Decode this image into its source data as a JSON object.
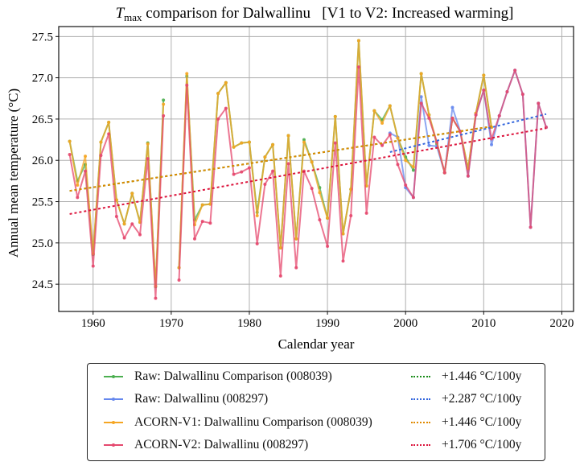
{
  "chart_data": {
    "type": "line",
    "title_main": "T",
    "title_sub": "max",
    "title_rest": " comparison for Dalwallinu   [V1 to V2: Increased warming]",
    "xlabel": "Calendar year",
    "ylabel": "Annual mean temperature (°C)",
    "xlim": [
      1955.6,
      2021.5
    ],
    "ylim": [
      24.17,
      27.62
    ],
    "xticks": [
      1960,
      1970,
      1980,
      1990,
      2000,
      2010,
      2020
    ],
    "yticks": [
      24.5,
      25.0,
      25.5,
      26.0,
      26.5,
      27.0,
      27.5
    ],
    "ytick_labels": [
      "24.5",
      "25.0",
      "25.5",
      "26.0",
      "26.5",
      "27.0",
      "27.5"
    ],
    "grid": true,
    "legend_placement": "below",
    "series": [
      {
        "name": "Raw: Dalwallinu Comparison (008039)",
        "color": "#4caf50",
        "years": [
          1957,
          1958,
          1959,
          1960,
          1961,
          1962,
          1963,
          1964,
          1965,
          1966,
          1967,
          1968,
          1969,
          null,
          1971,
          1972,
          1973,
          1974,
          1975,
          1976,
          1977,
          1978,
          1979,
          1980,
          1981,
          1982,
          1983,
          1984,
          1985,
          1986,
          1987,
          1988,
          1989,
          1990,
          1991,
          1992,
          1993,
          1994,
          1995,
          1996,
          1997,
          1998,
          1999,
          2000,
          2001,
          2002,
          2003,
          2004,
          2005,
          2006,
          2007,
          2008,
          2009,
          2010,
          2011
        ],
        "values": [
          26.23,
          25.75,
          25.95,
          24.86,
          26.22,
          26.46,
          25.52,
          25.23,
          25.6,
          25.25,
          26.21,
          24.47,
          26.73,
          null,
          24.7,
          27.02,
          25.28,
          25.46,
          25.47,
          26.81,
          26.94,
          26.16,
          26.21,
          26.22,
          25.37,
          26.04,
          26.19,
          24.94,
          26.3,
          25.05,
          26.25,
          25.98,
          25.67,
          25.3,
          26.53,
          25.11,
          25.65,
          27.45,
          25.69,
          26.6,
          26.49,
          26.66,
          26.27,
          26.04,
          25.88,
          27.05,
          26.55,
          26.2,
          25.85,
          26.51,
          26.35,
          25.9,
          26.57,
          27.03,
          26.4
        ]
      },
      {
        "name": "Raw: Dalwallinu (008297)",
        "color": "#6688ee",
        "years": [
          1998,
          1999,
          2000,
          2001,
          2002,
          2003,
          2004,
          2005,
          2006,
          2007,
          2008,
          2009,
          2010,
          2011,
          2012,
          2013,
          2014,
          2015,
          2016,
          2017,
          2018
        ],
        "values": [
          26.33,
          26.28,
          25.67,
          25.55,
          26.77,
          26.18,
          26.17,
          25.85,
          26.64,
          26.35,
          25.81,
          26.55,
          26.85,
          26.19,
          26.54,
          26.83,
          27.09,
          26.8,
          25.19,
          26.69,
          26.4
        ]
      },
      {
        "name": "ACORN-V1: Dalwallinu Comparison (008039)",
        "color": "#f5a623",
        "years": [
          1957,
          1958,
          1959,
          1960,
          1961,
          1962,
          1963,
          1964,
          1965,
          1966,
          1967,
          1968,
          1969,
          null,
          1971,
          1972,
          1973,
          1974,
          1975,
          1976,
          1977,
          1978,
          1979,
          1980,
          1981,
          1982,
          1983,
          1984,
          1985,
          1986,
          1987,
          1988,
          1989,
          1990,
          1991,
          1992,
          1993,
          1994,
          1995,
          1996,
          1997,
          1998,
          1999,
          2000,
          2001,
          2002,
          2003,
          2004,
          2005,
          2006,
          2007,
          2008,
          2009,
          2010,
          2011
        ],
        "values": [
          26.23,
          25.7,
          26.05,
          24.87,
          26.22,
          26.46,
          25.52,
          25.23,
          25.6,
          25.25,
          26.2,
          24.48,
          26.68,
          null,
          24.7,
          27.05,
          25.22,
          25.46,
          25.47,
          26.81,
          26.94,
          26.16,
          26.21,
          26.22,
          25.33,
          26.04,
          26.19,
          24.94,
          26.3,
          25.05,
          26.22,
          25.98,
          25.61,
          25.3,
          26.53,
          25.11,
          25.65,
          27.45,
          25.69,
          26.6,
          26.45,
          26.66,
          26.27,
          26.0,
          25.92,
          27.05,
          26.55,
          26.22,
          25.85,
          26.51,
          26.35,
          25.9,
          26.57,
          27.03,
          26.4
        ]
      },
      {
        "name": "ACORN-V2: Dalwallinu (008297)",
        "color": "#e5486e",
        "years": [
          1957,
          1958,
          1959,
          1960,
          1961,
          1962,
          1963,
          1964,
          1965,
          1966,
          1967,
          1968,
          1969,
          null,
          1971,
          1972,
          1973,
          1974,
          1975,
          1976,
          1977,
          1978,
          1979,
          1980,
          1981,
          1982,
          1983,
          1984,
          1985,
          1986,
          1987,
          1988,
          1989,
          1990,
          1991,
          1992,
          1993,
          1994,
          1995,
          1996,
          1997,
          1998,
          1999,
          2000,
          2001,
          2002,
          2003,
          2004,
          2005,
          2006,
          2007,
          2008,
          2009,
          2010,
          2011,
          2012,
          2013,
          2014,
          2015,
          2016,
          2017,
          2018
        ],
        "values": [
          26.07,
          25.55,
          25.87,
          24.72,
          26.06,
          26.32,
          25.32,
          25.06,
          25.23,
          25.1,
          26.02,
          24.33,
          26.54,
          null,
          24.55,
          26.91,
          25.05,
          25.26,
          25.24,
          26.5,
          26.63,
          25.83,
          25.86,
          25.91,
          24.99,
          25.71,
          25.87,
          24.6,
          25.96,
          24.7,
          25.87,
          25.66,
          25.28,
          24.96,
          26.21,
          24.78,
          25.33,
          27.13,
          25.36,
          26.28,
          26.18,
          26.31,
          25.95,
          25.7,
          25.55,
          26.69,
          26.51,
          26.22,
          25.85,
          26.51,
          26.35,
          25.81,
          26.55,
          26.85,
          26.26,
          26.54,
          26.83,
          27.09,
          26.8,
          25.19,
          26.69,
          26.4
        ]
      }
    ],
    "trends": [
      {
        "label": "+1.446 °C/100y",
        "color": "#1a8c1a",
        "x": [
          1957,
          2011
        ],
        "y": [
          25.63,
          26.41
        ]
      },
      {
        "label": "+2.287 °C/100y",
        "color": "#3366dd",
        "x": [
          1998,
          2018
        ],
        "y": [
          26.1,
          26.56
        ]
      },
      {
        "label": "+1.446 °C/100y",
        "color": "#e08a00",
        "x": [
          1957,
          2011
        ],
        "y": [
          25.63,
          26.41
        ]
      },
      {
        "label": "+1.706 °C/100y",
        "color": "#dc143c",
        "x": [
          1957,
          2018
        ],
        "y": [
          25.35,
          26.39
        ]
      }
    ]
  }
}
